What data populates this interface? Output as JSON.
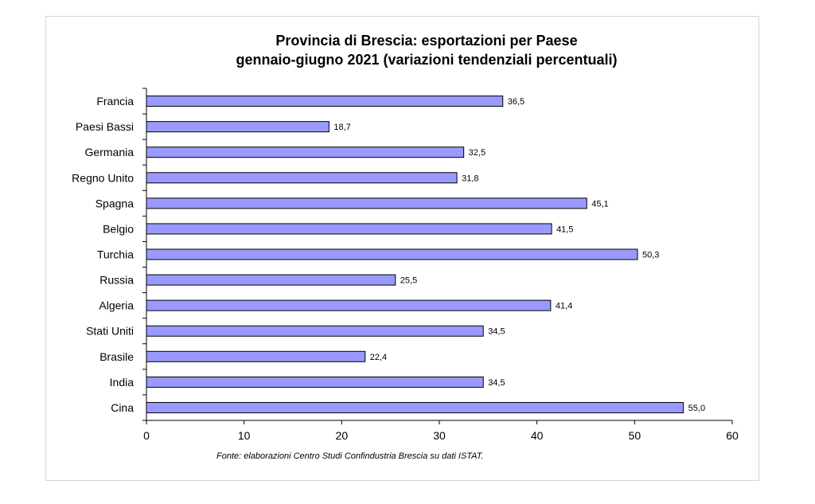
{
  "chart_data": {
    "type": "bar",
    "orientation": "horizontal",
    "title": "Provincia di Brescia: esportazioni per Paese",
    "subtitle": "gennaio-giugno 2021 (variazioni tendenziali percentuali)",
    "categories": [
      "Francia",
      "Paesi Bassi",
      "Germania",
      "Regno Unito",
      "Spagna",
      "Belgio",
      "Turchia",
      "Russia",
      "Algeria",
      "Stati Uniti",
      "Brasile",
      "India",
      "Cina"
    ],
    "values": [
      36.5,
      18.7,
      32.5,
      31.8,
      45.1,
      41.5,
      50.3,
      25.5,
      41.4,
      34.5,
      22.4,
      34.5,
      55.0
    ],
    "value_labels": [
      "36,5",
      "18,7",
      "32,5",
      "31,8",
      "45,1",
      "41,5",
      "50,3",
      "25,5",
      "41,4",
      "34,5",
      "22,4",
      "34,5",
      "55,0"
    ],
    "xlim": [
      0,
      60
    ],
    "xticks": [
      0,
      10,
      20,
      30,
      40,
      50,
      60
    ],
    "xlabel": "",
    "ylabel": "",
    "grid": false,
    "legend": "none",
    "bar_color": "#9999ff",
    "bar_edge_color": "#000000",
    "source_note": "Fonte: elaborazioni Centro Studi Confindustria Brescia su dati ISTAT."
  }
}
